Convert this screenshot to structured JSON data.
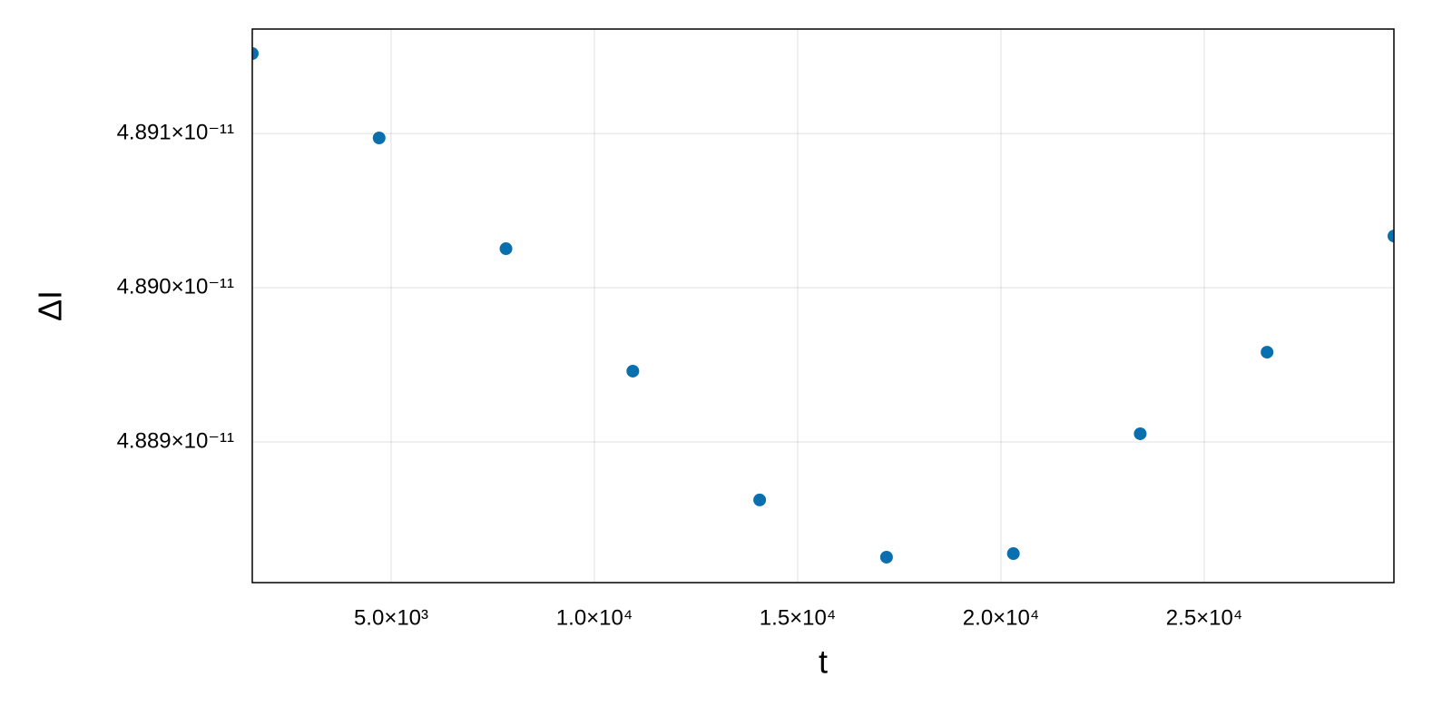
{
  "chart_data": {
    "type": "scatter",
    "x_label": "t",
    "y_label": "ΔI",
    "x": [
      1585,
      4705,
      7825,
      10945,
      14065,
      17185,
      20305,
      23425,
      26545,
      29665
    ],
    "series": [
      {
        "color": "#0a6fae",
        "values": [
          4.891518e-11,
          4.890971e-11,
          4.890253e-11,
          4.889459e-11,
          4.888624e-11,
          4.888253e-11,
          4.888276e-11,
          4.889053e-11,
          4.889582e-11,
          4.890335e-11
        ]
      }
    ],
    "xlim": [
      1585,
      29665
    ],
    "ylim": [
      4.888088e-11,
      4.891677e-11
    ],
    "xticks": [
      {
        "value": 5000,
        "label": "5.0×10³"
      },
      {
        "value": 10000,
        "label": "1.0×10⁴"
      },
      {
        "value": 15000,
        "label": "1.5×10⁴"
      },
      {
        "value": 20000,
        "label": "2.0×10⁴"
      },
      {
        "value": 25000,
        "label": "2.5×10⁴"
      }
    ],
    "yticks": [
      {
        "value": 4.889e-11,
        "label": "4.889×10⁻¹¹"
      },
      {
        "value": 4.89e-11,
        "label": "4.890×10⁻¹¹"
      },
      {
        "value": 4.891e-11,
        "label": "4.891×10⁻¹¹"
      }
    ],
    "grid": true
  }
}
